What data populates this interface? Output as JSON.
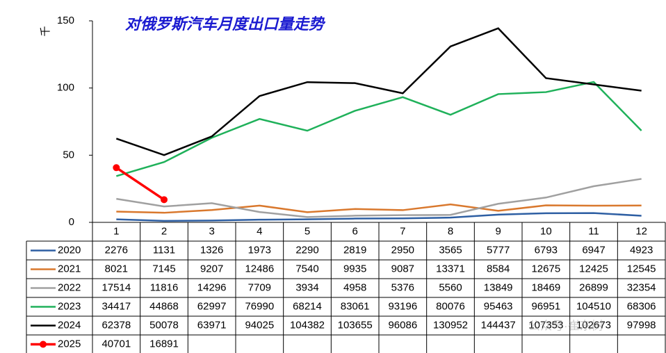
{
  "chart_data": {
    "type": "line",
    "title": "对俄罗斯汽车月度出口量走势",
    "y_label": "千",
    "categories": [
      "1",
      "2",
      "3",
      "4",
      "5",
      "6",
      "7",
      "8",
      "9",
      "10",
      "11",
      "12"
    ],
    "ylim": [
      0,
      150
    ],
    "yticks": [
      0,
      50,
      100,
      150
    ],
    "watermark": "公众号·崔东树",
    "series": [
      {
        "name": "2020",
        "color": "#2e5fa3",
        "markers": false,
        "values": [
          2.276,
          1.131,
          1.326,
          1.973,
          2.29,
          2.819,
          2.95,
          3.565,
          5.777,
          6.793,
          6.947,
          4.923
        ],
        "value_labels": [
          "2276",
          "1131",
          "1326",
          "1973",
          "2290",
          "2819",
          "2950",
          "3565",
          "5777",
          "6793",
          "6947",
          "4923"
        ]
      },
      {
        "name": "2021",
        "color": "#d9782d",
        "markers": false,
        "values": [
          8.021,
          7.145,
          9.207,
          12.486,
          7.54,
          9.935,
          9.087,
          13.371,
          8.584,
          12.675,
          12.425,
          12.545
        ],
        "value_labels": [
          "8021",
          "7145",
          "9207",
          "12486",
          "7540",
          "9935",
          "9087",
          "13371",
          "8584",
          "12675",
          "12425",
          "12545"
        ]
      },
      {
        "name": "2022",
        "color": "#a0a0a0",
        "markers": false,
        "values": [
          17.514,
          11.816,
          14.296,
          7.709,
          3.934,
          4.958,
          5.376,
          5.56,
          13.849,
          18.469,
          26.899,
          32.354
        ],
        "value_labels": [
          "17514",
          "11816",
          "14296",
          "7709",
          "3934",
          "4958",
          "5376",
          "5560",
          "13849",
          "18469",
          "26899",
          "32354"
        ]
      },
      {
        "name": "2023",
        "color": "#1fb15a",
        "markers": false,
        "values": [
          34.417,
          44.868,
          62.997,
          76.99,
          68.214,
          83.061,
          93.196,
          80.076,
          95.463,
          96.951,
          104.51,
          68.306
        ],
        "value_labels": [
          "34417",
          "44868",
          "62997",
          "76990",
          "68214",
          "83061",
          "93196",
          "80076",
          "95463",
          "96951",
          "104510",
          "68306"
        ]
      },
      {
        "name": "2024",
        "color": "#000000",
        "markers": false,
        "values": [
          62.378,
          50.078,
          63.971,
          94.025,
          104.382,
          103.655,
          96.086,
          130.952,
          144.437,
          107.353,
          102.673,
          97.998
        ],
        "value_labels": [
          "62378",
          "50078",
          "63971",
          "94025",
          "104382",
          "103655",
          "96086",
          "130952",
          "144437",
          "107353",
          "102673",
          "97998"
        ]
      },
      {
        "name": "2025",
        "color": "#ff0000",
        "markers": true,
        "values": [
          40.701,
          16.891,
          null,
          null,
          null,
          null,
          null,
          null,
          null,
          null,
          null,
          null
        ],
        "value_labels": [
          "40701",
          "16891",
          null,
          null,
          null,
          null,
          null,
          null,
          null,
          null,
          null,
          null
        ]
      }
    ]
  }
}
